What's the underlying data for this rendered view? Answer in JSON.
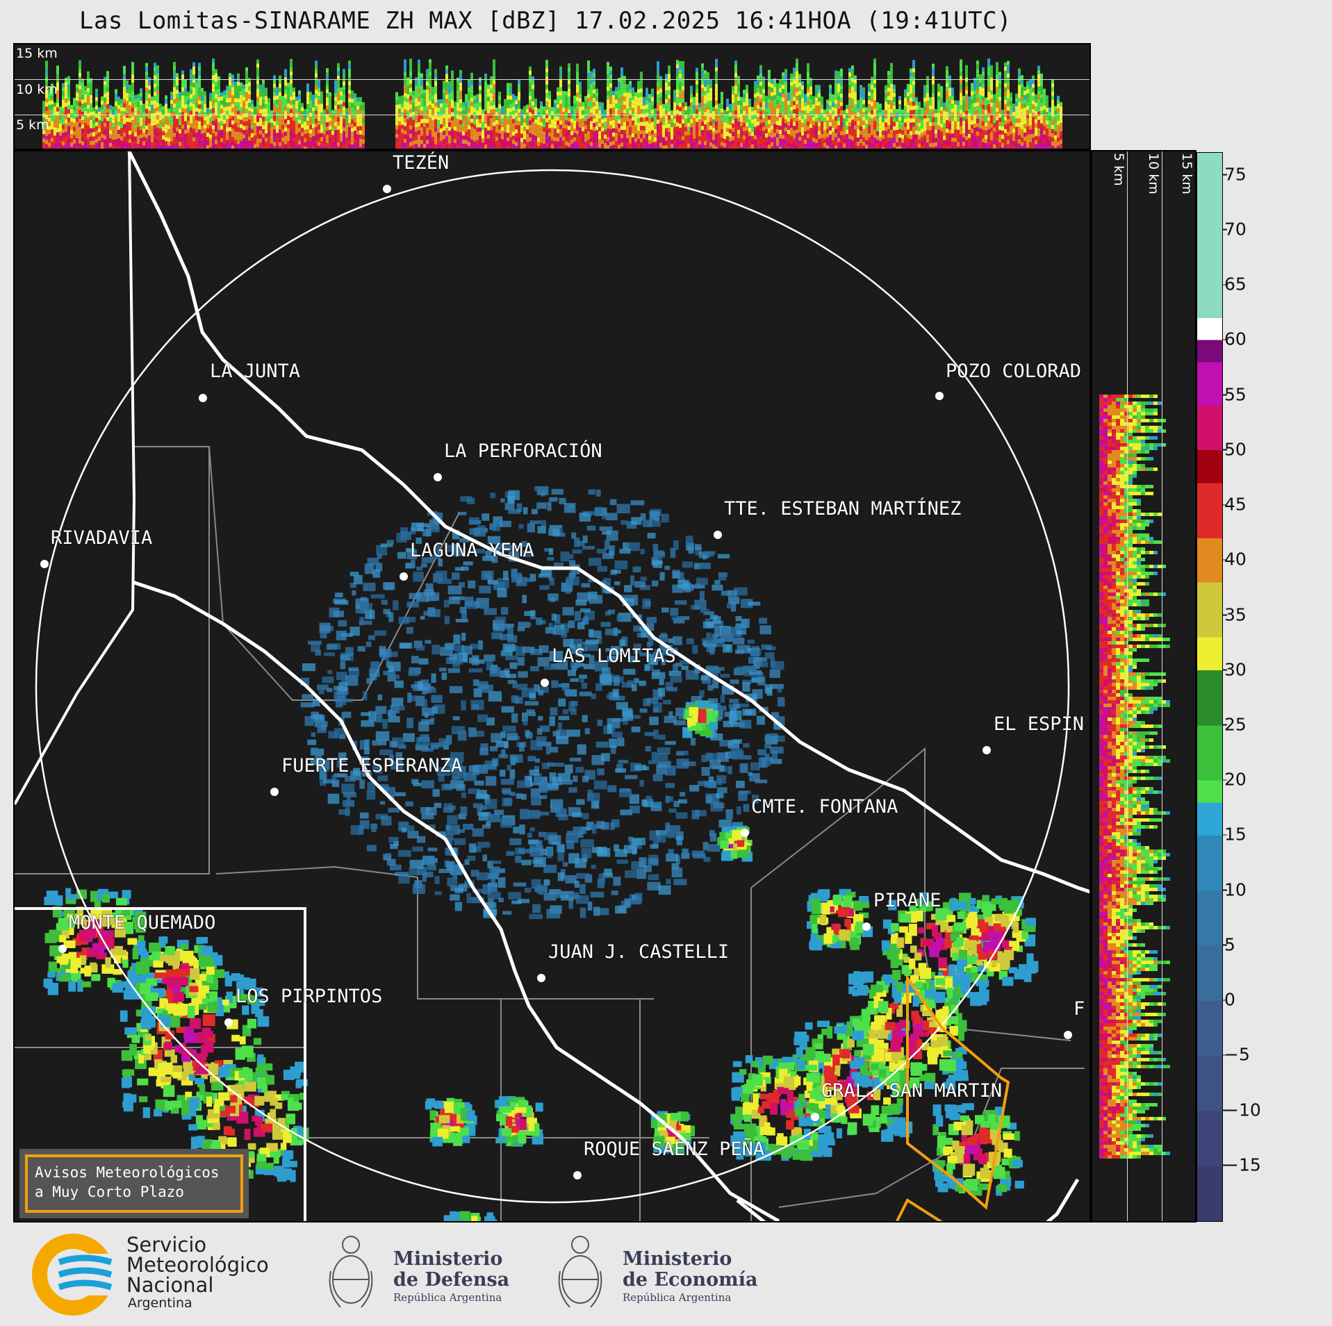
{
  "title": "Las Lomitas-SINARAME ZH MAX [dBZ] 17.02.2025 16:41HOA (19:41UTC)",
  "xsec_top_labels": [
    "15 km",
    "10 km",
    "5 km"
  ],
  "xsec_right_labels": [
    "5 km",
    "10 km",
    "15 km"
  ],
  "colorbar": {
    "ticks": [
      "75",
      "70",
      "65",
      "60",
      "55",
      "50",
      "45",
      "40",
      "35",
      "30",
      "25",
      "20",
      "15",
      "10",
      "5",
      "0",
      "−5",
      "−10",
      "−15"
    ],
    "tick_values": [
      75,
      70,
      65,
      60,
      55,
      50,
      45,
      40,
      35,
      30,
      25,
      20,
      15,
      10,
      5,
      0,
      -5,
      -10,
      -15
    ],
    "min": -20,
    "max": 77,
    "colors": [
      {
        "from": -20,
        "to": -15,
        "color": "#3c3b6e"
      },
      {
        "from": -15,
        "to": -10,
        "color": "#3f4578"
      },
      {
        "from": -10,
        "to": -5,
        "color": "#3e5284"
      },
      {
        "from": -5,
        "to": 0,
        "color": "#3e5e90"
      },
      {
        "from": 0,
        "to": 5,
        "color": "#3a6c9c"
      },
      {
        "from": 5,
        "to": 10,
        "color": "#3479a8"
      },
      {
        "from": 10,
        "to": 15,
        "color": "#2f88b8"
      },
      {
        "from": 15,
        "to": 18,
        "color": "#2ea6d6"
      },
      {
        "from": 18,
        "to": 20,
        "color": "#4ee04a"
      },
      {
        "from": 20,
        "to": 25,
        "color": "#3cbf3a"
      },
      {
        "from": 25,
        "to": 30,
        "color": "#2a8c2a"
      },
      {
        "from": 30,
        "to": 33,
        "color": "#eeee30"
      },
      {
        "from": 33,
        "to": 38,
        "color": "#cfc83a"
      },
      {
        "from": 38,
        "to": 42,
        "color": "#e08a20"
      },
      {
        "from": 42,
        "to": 47,
        "color": "#e02a2a"
      },
      {
        "from": 47,
        "to": 50,
        "color": "#a00010"
      },
      {
        "from": 50,
        "to": 54,
        "color": "#d0106a"
      },
      {
        "from": 54,
        "to": 58,
        "color": "#c010b0"
      },
      {
        "from": 58,
        "to": 60,
        "color": "#7a0a7a"
      },
      {
        "from": 60,
        "to": 62,
        "color": "#ffffff"
      },
      {
        "from": 62,
        "to": 77,
        "color": "#8edcc0"
      }
    ]
  },
  "cities": [
    {
      "name": "TEZÉN",
      "dot": [
        555,
        270
      ],
      "label": [
        563,
        233
      ]
    },
    {
      "name": "LA JUNTA",
      "dot": [
        290,
        571
      ],
      "label": [
        300,
        533
      ]
    },
    {
      "name": "POZO COLORAD",
      "dot": [
        1350,
        568
      ],
      "label": [
        1359,
        533
      ]
    },
    {
      "name": "LA PERFORACIÓN",
      "dot": [
        628,
        685
      ],
      "label": [
        637,
        648
      ]
    },
    {
      "name": "TTE. ESTEBAN MARTÍNEZ",
      "dot": [
        1031,
        768
      ],
      "label": [
        1040,
        731
      ]
    },
    {
      "name": "RIVADAVIA",
      "dot": [
        62,
        810
      ],
      "label": [
        71,
        773
      ]
    },
    {
      "name": "LAGUNA YEMA",
      "dot": [
        579,
        828
      ],
      "label": [
        588,
        791
      ]
    },
    {
      "name": "LAS LOMITAS",
      "dot": [
        782,
        981
      ],
      "label": [
        792,
        943
      ]
    },
    {
      "name": "EL ESPIN",
      "dot": [
        1418,
        1078
      ],
      "label": [
        1428,
        1041
      ]
    },
    {
      "name": "FUERTE ESPERANZA",
      "dot": [
        393,
        1138
      ],
      "label": [
        403,
        1101
      ]
    },
    {
      "name": "CMTE. FONTANA",
      "dot": [
        1070,
        1197
      ],
      "label": [
        1079,
        1160
      ]
    },
    {
      "name": "PIRANE",
      "dot": [
        1245,
        1332
      ],
      "label": [
        1255,
        1295
      ]
    },
    {
      "name": "MONTE QUEMADO",
      "dot": [
        88,
        1364
      ],
      "label": [
        97,
        1327
      ]
    },
    {
      "name": "JUAN J. CASTELLI",
      "dot": [
        777,
        1406
      ],
      "label": [
        787,
        1369
      ]
    },
    {
      "name": "LOS PIRPINTOS",
      "dot": [
        327,
        1470
      ],
      "label": [
        337,
        1433
      ]
    },
    {
      "name": "F",
      "dot": [
        1535,
        1488
      ],
      "label": [
        1543,
        1451
      ]
    },
    {
      "name": "GRAL. SAN MARTIN",
      "dot": [
        1171,
        1606
      ],
      "label": [
        1180,
        1569
      ]
    },
    {
      "name": "ROQUE SAENZ PEÑA",
      "dot": [
        829,
        1690
      ],
      "label": [
        838,
        1653
      ]
    }
  ],
  "warning_box": {
    "line1": "Avisos Meteorológicos",
    "line2": "a Muy Corto Plazo"
  },
  "logos": {
    "smn": {
      "line1": "Servicio",
      "line2": "Meteorológico",
      "line3": "Nacional",
      "line4": "Argentina"
    },
    "defensa": {
      "line1": "Ministerio",
      "line2": "de Defensa",
      "line3": "República Argentina"
    },
    "economia": {
      "line1": "Ministerio",
      "line2": "de Economía",
      "line3": "República Argentina"
    }
  }
}
